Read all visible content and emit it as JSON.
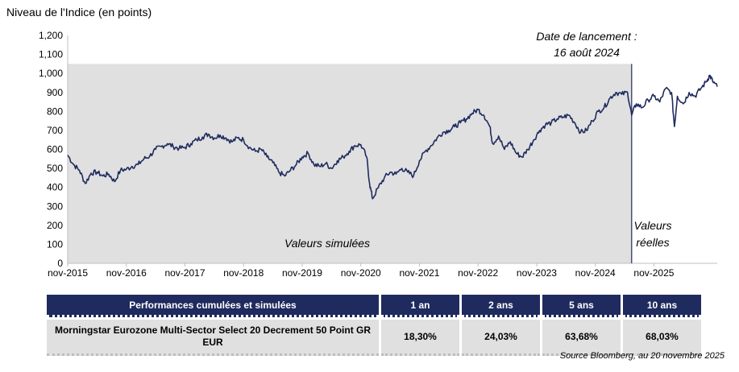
{
  "chart_data": {
    "type": "line",
    "title": "Niveau de l'Indice (en points)",
    "ylim": [
      0,
      1200
    ],
    "y_ticks": [
      "0",
      "100",
      "200",
      "300",
      "400",
      "500",
      "600",
      "700",
      "800",
      "900",
      "1,000",
      "1,100",
      "1,200"
    ],
    "y_tick_values": [
      0,
      100,
      200,
      300,
      400,
      500,
      600,
      700,
      800,
      900,
      1000,
      1100,
      1200
    ],
    "x_tick_labels": [
      "nov-2015",
      "nov-2016",
      "nov-2017",
      "nov-2018",
      "nov-2019",
      "nov-2020",
      "nov-2021",
      "nov-2022",
      "nov-2023",
      "nov-2024",
      "nov-2025"
    ],
    "xlim": [
      2015.0,
      2026.08
    ],
    "launch_date": {
      "x": 2024.62,
      "label_line1": "Date de lancement :",
      "label_line2": "16 août 2024"
    },
    "simulated_shading_top": 1050,
    "simulated_label": "Valeurs simulées",
    "real_label_line1": "Valeurs",
    "real_label_line2": "réelles",
    "series": [
      {
        "name": "Morningstar Eurozone Multi-Sector Select 20 Decrement 50 Point GR EUR",
        "points": [
          [
            2015.0,
            570
          ],
          [
            2015.1,
            520
          ],
          [
            2015.2,
            490
          ],
          [
            2015.3,
            420
          ],
          [
            2015.4,
            475
          ],
          [
            2015.5,
            480
          ],
          [
            2015.6,
            460
          ],
          [
            2015.7,
            470
          ],
          [
            2015.8,
            430
          ],
          [
            2015.9,
            490
          ],
          [
            2016.0,
            495
          ],
          [
            2016.1,
            510
          ],
          [
            2016.2,
            520
          ],
          [
            2016.3,
            550
          ],
          [
            2016.4,
            565
          ],
          [
            2016.5,
            600
          ],
          [
            2016.6,
            615
          ],
          [
            2016.7,
            630
          ],
          [
            2016.8,
            615
          ],
          [
            2016.9,
            605
          ],
          [
            2017.0,
            610
          ],
          [
            2017.1,
            630
          ],
          [
            2017.2,
            650
          ],
          [
            2017.3,
            665
          ],
          [
            2017.4,
            680
          ],
          [
            2017.5,
            660
          ],
          [
            2017.6,
            675
          ],
          [
            2017.7,
            660
          ],
          [
            2017.8,
            640
          ],
          [
            2017.9,
            660
          ],
          [
            2018.0,
            650
          ],
          [
            2018.1,
            610
          ],
          [
            2018.2,
            590
          ],
          [
            2018.3,
            600
          ],
          [
            2018.4,
            560
          ],
          [
            2018.5,
            530
          ],
          [
            2018.6,
            480
          ],
          [
            2018.7,
            460
          ],
          [
            2018.8,
            490
          ],
          [
            2018.9,
            520
          ],
          [
            2019.0,
            560
          ],
          [
            2019.1,
            580
          ],
          [
            2019.2,
            520
          ],
          [
            2019.3,
            510
          ],
          [
            2019.4,
            525
          ],
          [
            2019.5,
            500
          ],
          [
            2019.6,
            540
          ],
          [
            2019.7,
            560
          ],
          [
            2019.8,
            590
          ],
          [
            2019.9,
            620
          ],
          [
            2020.0,
            625
          ],
          [
            2020.1,
            560
          ],
          [
            2020.15,
            420
          ],
          [
            2020.2,
            340
          ],
          [
            2020.3,
            400
          ],
          [
            2020.4,
            450
          ],
          [
            2020.5,
            480
          ],
          [
            2020.6,
            470
          ],
          [
            2020.7,
            500
          ],
          [
            2020.8,
            480
          ],
          [
            2020.9,
            460
          ],
          [
            2021.0,
            540
          ],
          [
            2021.1,
            590
          ],
          [
            2021.2,
            620
          ],
          [
            2021.3,
            660
          ],
          [
            2021.4,
            690
          ],
          [
            2021.5,
            700
          ],
          [
            2021.6,
            720
          ],
          [
            2021.7,
            740
          ],
          [
            2021.8,
            760
          ],
          [
            2021.9,
            790
          ],
          [
            2022.0,
            810
          ],
          [
            2022.1,
            780
          ],
          [
            2022.2,
            720
          ],
          [
            2022.25,
            630
          ],
          [
            2022.35,
            670
          ],
          [
            2022.45,
            600
          ],
          [
            2022.55,
            640
          ],
          [
            2022.65,
            580
          ],
          [
            2022.75,
            560
          ],
          [
            2022.85,
            600
          ],
          [
            2022.95,
            650
          ],
          [
            2023.05,
            700
          ],
          [
            2023.15,
            730
          ],
          [
            2023.25,
            740
          ],
          [
            2023.35,
            760
          ],
          [
            2023.45,
            770
          ],
          [
            2023.55,
            780
          ],
          [
            2023.65,
            740
          ],
          [
            2023.75,
            690
          ],
          [
            2023.85,
            700
          ],
          [
            2023.95,
            750
          ],
          [
            2024.05,
            800
          ],
          [
            2024.15,
            820
          ],
          [
            2024.25,
            870
          ],
          [
            2024.35,
            900
          ],
          [
            2024.45,
            890
          ],
          [
            2024.55,
            900
          ],
          [
            2024.62,
            780
          ],
          [
            2024.7,
            840
          ],
          [
            2024.8,
            820
          ],
          [
            2024.9,
            860
          ],
          [
            2025.0,
            880
          ],
          [
            2025.1,
            850
          ],
          [
            2025.2,
            920
          ],
          [
            2025.3,
            900
          ],
          [
            2025.35,
            720
          ],
          [
            2025.4,
            880
          ],
          [
            2025.5,
            840
          ],
          [
            2025.6,
            900
          ],
          [
            2025.7,
            880
          ],
          [
            2025.8,
            920
          ],
          [
            2025.9,
            960
          ],
          [
            2025.95,
            990
          ],
          [
            2026.0,
            960
          ],
          [
            2026.08,
            930
          ]
        ]
      }
    ]
  },
  "table": {
    "header": [
      "Performances cumulées et simulées",
      "1 an",
      "2 ans",
      "5 ans",
      "10 ans"
    ],
    "row": {
      "name": "Morningstar Eurozone Multi-Sector Select 20 Decrement 50 Point GR EUR",
      "values": [
        "18,30%",
        "24,03%",
        "63,68%",
        "68,03%"
      ]
    }
  },
  "source": "Source Bloomberg, au 20 novembre 2025",
  "colors": {
    "line": "#1f2b5e",
    "shade": "#e0e0e0",
    "header_bg": "#1f2b5e",
    "cell_bg": "#e0e0e0"
  }
}
